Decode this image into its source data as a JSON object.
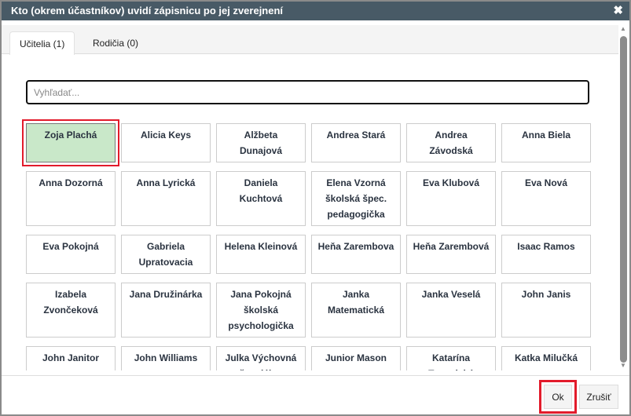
{
  "dialog": {
    "title": "Kto (okrem účastníkov) uvidí zápisnicu po jej zverejnení"
  },
  "tabs": [
    {
      "label": "Učitelia (1)",
      "active": true
    },
    {
      "label": "Rodičia (0)",
      "active": false
    }
  ],
  "search": {
    "placeholder": "Vyhľadať...",
    "value": ""
  },
  "people": [
    [
      "Zoja Plachá",
      "Alicia Keys",
      "Alžbeta Dunajová",
      "Andrea Stará",
      "Andrea Závodská",
      "Anna Biela"
    ],
    [
      "Anna Dozorná",
      "Anna Lyrická",
      "Daniela Kuchtová",
      "Elena Vzorná školská špec. pedagogička",
      "Eva Klubová",
      "Eva Nová"
    ],
    [
      "Eva Pokojná",
      "Gabriela Upratovacia",
      "Helena Kleinová",
      "Heňa Zarembova",
      "Heňa Zarembová",
      "Isaac Ramos"
    ],
    [
      "Izabela Zvončeková",
      "Jana Družinárka",
      "Jana Pokojná školská psychologička",
      "Janka Matematická",
      "Janka Veselá",
      "John Janis"
    ],
    [
      "John Janitor",
      "John Williams",
      "Julka Výchovná špeciálna",
      "Junior Mason",
      "Katarína Tematická",
      "Katka Milučká"
    ]
  ],
  "selected": [
    "Zoja Plachá"
  ],
  "colors": {
    "titlebar": "#485a66",
    "selected": "#c9e8c9",
    "highlight": "#e21b2b"
  },
  "footer": {
    "ok": "Ok",
    "cancel": "Zrušiť"
  }
}
